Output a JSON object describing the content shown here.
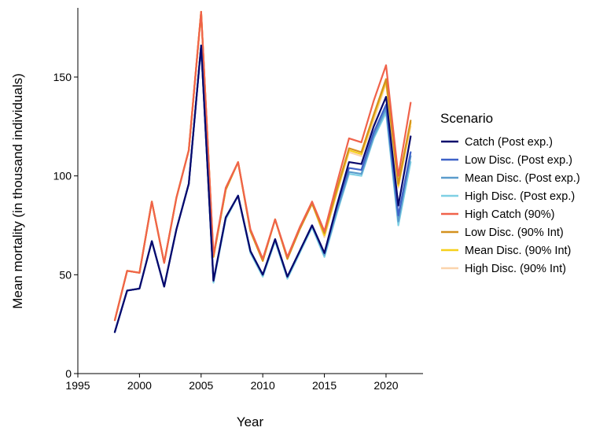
{
  "chart_data": {
    "type": "line",
    "title": "",
    "xlabel": "Year",
    "ylabel": "Mean mortality (in thousand individuals)",
    "xlim": [
      1995,
      2023
    ],
    "ylim": [
      0,
      185
    ],
    "xticks": [
      1995,
      2000,
      2005,
      2010,
      2015,
      2020
    ],
    "yticks": [
      0,
      50,
      100,
      150
    ],
    "grid": false,
    "legend": {
      "title": "Scenario",
      "position": "right"
    },
    "x": [
      1998,
      1999,
      2000,
      2001,
      2002,
      2003,
      2004,
      2005,
      2006,
      2007,
      2008,
      2009,
      2010,
      2011,
      2012,
      2013,
      2014,
      2015,
      2016,
      2017,
      2018,
      2019,
      2020,
      2021,
      2022
    ],
    "series": [
      {
        "name": "Catch (Post exp.)",
        "color": "#08086b",
        "values": [
          21,
          42,
          43,
          67,
          44,
          73,
          96,
          166,
          47,
          79,
          90,
          62,
          50,
          68,
          49,
          62,
          75,
          61,
          85,
          107,
          106,
          125,
          140,
          85,
          120
        ]
      },
      {
        "name": "Low Disc. (Post exp.)",
        "color": "#3f63c8",
        "values": [
          21,
          42,
          43,
          67,
          44,
          73,
          96,
          166,
          47,
          79,
          90,
          62,
          50,
          68,
          49,
          62,
          75,
          61,
          84,
          104,
          103,
          122,
          136,
          80,
          112
        ]
      },
      {
        "name": "Mean Disc. (Post exp.)",
        "color": "#5a9ccc",
        "values": [
          21,
          42,
          43,
          67,
          44,
          73,
          96,
          166,
          47,
          79,
          90,
          62,
          50,
          68,
          49,
          62,
          75,
          60,
          82,
          102,
          101,
          120,
          134,
          77,
          110
        ]
      },
      {
        "name": "High Disc. (Post exp.)",
        "color": "#7fd0e4",
        "values": [
          21,
          42,
          43,
          67,
          44,
          73,
          96,
          166,
          46,
          78,
          90,
          61,
          49,
          67,
          48,
          61,
          74,
          59,
          81,
          101,
          100,
          119,
          132,
          75,
          107
        ]
      },
      {
        "name": "High Catch (90%)",
        "color": "#f0624a",
        "values": [
          27,
          52,
          51,
          87,
          56,
          89,
          113,
          183,
          60,
          94,
          107,
          73,
          58,
          78,
          59,
          74,
          87,
          72,
          96,
          119,
          117,
          138,
          156,
          100,
          137
        ]
      },
      {
        "name": "Low Disc. (90% Int)",
        "color": "#d4911e",
        "values": [
          27,
          52,
          51,
          87,
          56,
          89,
          113,
          183,
          59,
          93,
          107,
          72,
          57,
          78,
          58,
          73,
          86,
          71,
          93,
          114,
          112,
          131,
          149,
          96,
          128
        ]
      },
      {
        "name": "Mean Disc. (90% Int)",
        "color": "#f6d01a",
        "values": [
          27,
          52,
          51,
          87,
          56,
          89,
          113,
          183,
          59,
          93,
          107,
          72,
          57,
          78,
          58,
          73,
          86,
          70,
          92,
          113,
          111,
          130,
          148,
          95,
          127
        ]
      },
      {
        "name": "High Disc. (90% Int)",
        "color": "#fbd4ac",
        "values": [
          27,
          52,
          51,
          87,
          56,
          89,
          113,
          183,
          59,
          93,
          107,
          72,
          57,
          78,
          58,
          73,
          86,
          69,
          91,
          112,
          110,
          128,
          147,
          94,
          125
        ]
      }
    ]
  }
}
